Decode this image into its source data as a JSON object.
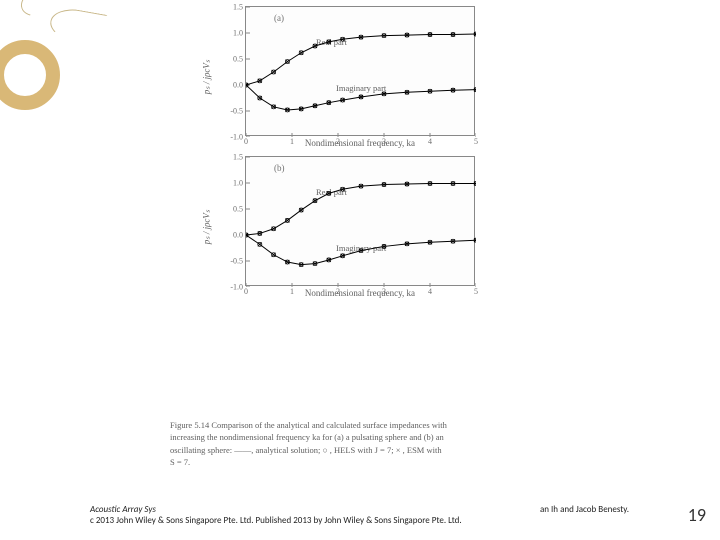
{
  "ornament": {
    "ring_color": "#d9b877",
    "leaf_stroke": "#c9b88a"
  },
  "chart_a": {
    "type": "line",
    "panel_label": "(a)",
    "ylabel": "pₛ / jρcVₛ",
    "xlabel": "Nondimensional frequency, ka",
    "ylim": [
      -1.0,
      1.5
    ],
    "yticks": [
      -1.0,
      -0.5,
      0.0,
      0.5,
      1.0,
      1.5
    ],
    "xlim": [
      0,
      5
    ],
    "xticks": [
      0,
      1,
      2,
      3,
      4,
      5
    ],
    "real_label": "Real part",
    "imag_label": "Imaginary part",
    "line_color": "#000000",
    "marker_color": "#000000",
    "bg": "#fdfdfd",
    "series_real": {
      "x": [
        0,
        0.3,
        0.6,
        0.9,
        1.2,
        1.5,
        1.8,
        2.1,
        2.5,
        3.0,
        3.5,
        4.0,
        4.5,
        5.0
      ],
      "y": [
        0,
        0.08,
        0.25,
        0.45,
        0.62,
        0.75,
        0.83,
        0.88,
        0.92,
        0.95,
        0.96,
        0.97,
        0.97,
        0.98
      ]
    },
    "series_imag": {
      "x": [
        0,
        0.3,
        0.6,
        0.9,
        1.2,
        1.5,
        1.8,
        2.1,
        2.5,
        3.0,
        3.5,
        4.0,
        4.5,
        5.0
      ],
      "y": [
        0,
        -0.25,
        -0.42,
        -0.48,
        -0.46,
        -0.4,
        -0.34,
        -0.29,
        -0.23,
        -0.17,
        -0.14,
        -0.12,
        -0.1,
        -0.09
      ]
    }
  },
  "chart_b": {
    "type": "line",
    "panel_label": "(b)",
    "ylabel": "pₛ / jρcVₛ",
    "xlabel": "Nondimensional frequency, ka",
    "ylim": [
      -1.0,
      1.5
    ],
    "yticks": [
      -1.0,
      -0.5,
      0.0,
      0.5,
      1.0,
      1.5
    ],
    "xlim": [
      0,
      5
    ],
    "xticks": [
      0,
      1,
      2,
      3,
      4,
      5
    ],
    "real_label": "Real part",
    "imag_label": "Imaginary part",
    "line_color": "#000000",
    "marker_color": "#000000",
    "bg": "#fdfdfd",
    "series_real": {
      "x": [
        0,
        0.3,
        0.6,
        0.9,
        1.2,
        1.5,
        1.8,
        2.1,
        2.5,
        3.0,
        3.5,
        4.0,
        4.5,
        5.0
      ],
      "y": [
        0,
        0.03,
        0.12,
        0.28,
        0.48,
        0.66,
        0.8,
        0.88,
        0.94,
        0.97,
        0.98,
        0.99,
        0.99,
        0.99
      ]
    },
    "series_imag": {
      "x": [
        0,
        0.3,
        0.6,
        0.9,
        1.2,
        1.5,
        1.8,
        2.1,
        2.5,
        3.0,
        3.5,
        4.0,
        4.5,
        5.0
      ],
      "y": [
        0,
        -0.18,
        -0.38,
        -0.52,
        -0.57,
        -0.55,
        -0.48,
        -0.4,
        -0.3,
        -0.22,
        -0.17,
        -0.14,
        -0.12,
        -0.1
      ]
    }
  },
  "caption": {
    "l1": "Figure 5.14 Comparison of the analytical and calculated surface impedances with",
    "l2": "increasing the nondimensional frequency ka for (a) a pulsating sphere and (b) an",
    "l3": "oscillating sphere: ——, analytical solution;  ○ , HELS with  J = 7;  × , ESM with",
    "l4": "S = 7."
  },
  "footer": {
    "line1a": "Acoustic Array Sys",
    "line1b": "an Ih and Jacob Benesty.",
    "line2": "c 2013 John Wiley & Sons Singapore Pte. Ltd. Published 2013 by John Wiley & Sons Singapore Pte. Ltd."
  },
  "page_number": "19"
}
